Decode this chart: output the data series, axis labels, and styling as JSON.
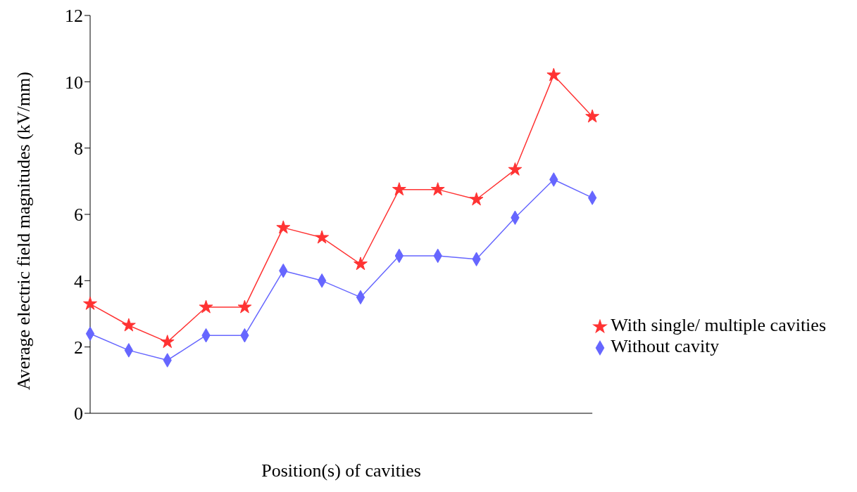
{
  "chart_data": {
    "type": "line",
    "xlabel": "Position(s) of cavities",
    "ylabel": "Average electric field magnitudes (kV/mm)",
    "categories": [
      null,
      null,
      null,
      null,
      null,
      null,
      null,
      null,
      null,
      null,
      null,
      null,
      null,
      null
    ],
    "series": [
      {
        "name": "With single/ multiple cavities",
        "color": "#ff3333",
        "marker": "star",
        "values": [
          3.3,
          2.65,
          2.15,
          3.2,
          3.2,
          5.6,
          5.3,
          4.5,
          6.75,
          6.75,
          6.45,
          7.35,
          10.2,
          8.95
        ]
      },
      {
        "name": "Without cavity",
        "color": "#6666ff",
        "marker": "diamond",
        "values": [
          2.4,
          1.9,
          1.6,
          2.35,
          2.35,
          4.3,
          4.0,
          3.5,
          4.75,
          4.75,
          4.65,
          5.9,
          7.05,
          6.5
        ]
      }
    ],
    "ylim": [
      0,
      12
    ],
    "yticks": [
      0,
      2,
      4,
      6,
      8,
      10,
      12
    ],
    "grid": false,
    "legend": "right",
    "tick_labels": "y",
    "line_style": "solid"
  }
}
